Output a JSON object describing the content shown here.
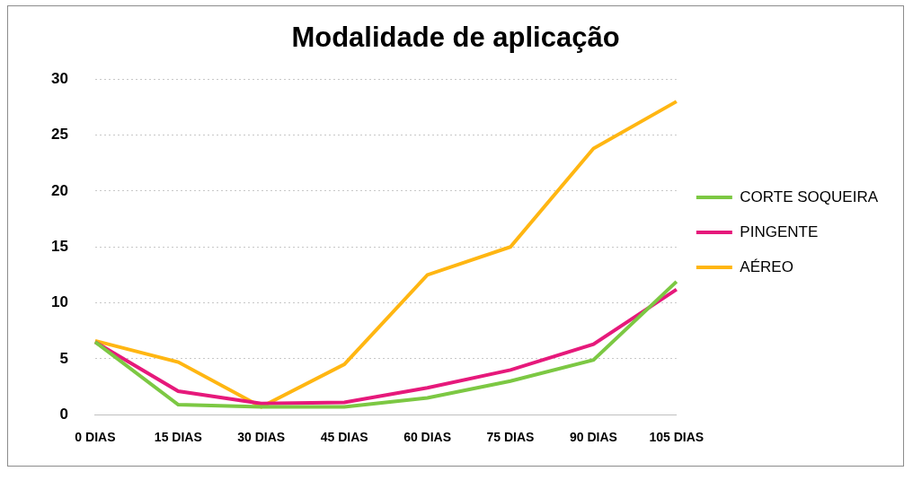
{
  "chart_data": {
    "type": "line",
    "title": "Modalidade de aplicação",
    "categories": [
      "0 DIAS",
      "15 DIAS",
      "30 DIAS",
      "45 DIAS",
      "60 DIAS",
      "75 DIAS",
      "90 DIAS",
      "105 DIAS"
    ],
    "series": [
      {
        "name": "CORTE SOQUEIRA",
        "color": "#7cc843",
        "values": [
          6.5,
          0.9,
          0.7,
          0.7,
          1.5,
          3.0,
          4.9,
          11.9
        ]
      },
      {
        "name": "PINGENTE",
        "color": "#e6197b",
        "values": [
          6.5,
          2.1,
          1.0,
          1.1,
          2.4,
          4.0,
          6.3,
          11.2
        ]
      },
      {
        "name": "AÉREO",
        "color": "#ffb612",
        "values": [
          6.6,
          4.7,
          0.7,
          4.5,
          12.5,
          15.0,
          23.8,
          28.0
        ]
      }
    ],
    "ylim": [
      0,
      30
    ],
    "yticks": [
      0,
      5,
      10,
      15,
      20,
      25,
      30
    ],
    "grid": true,
    "legend": "right"
  }
}
